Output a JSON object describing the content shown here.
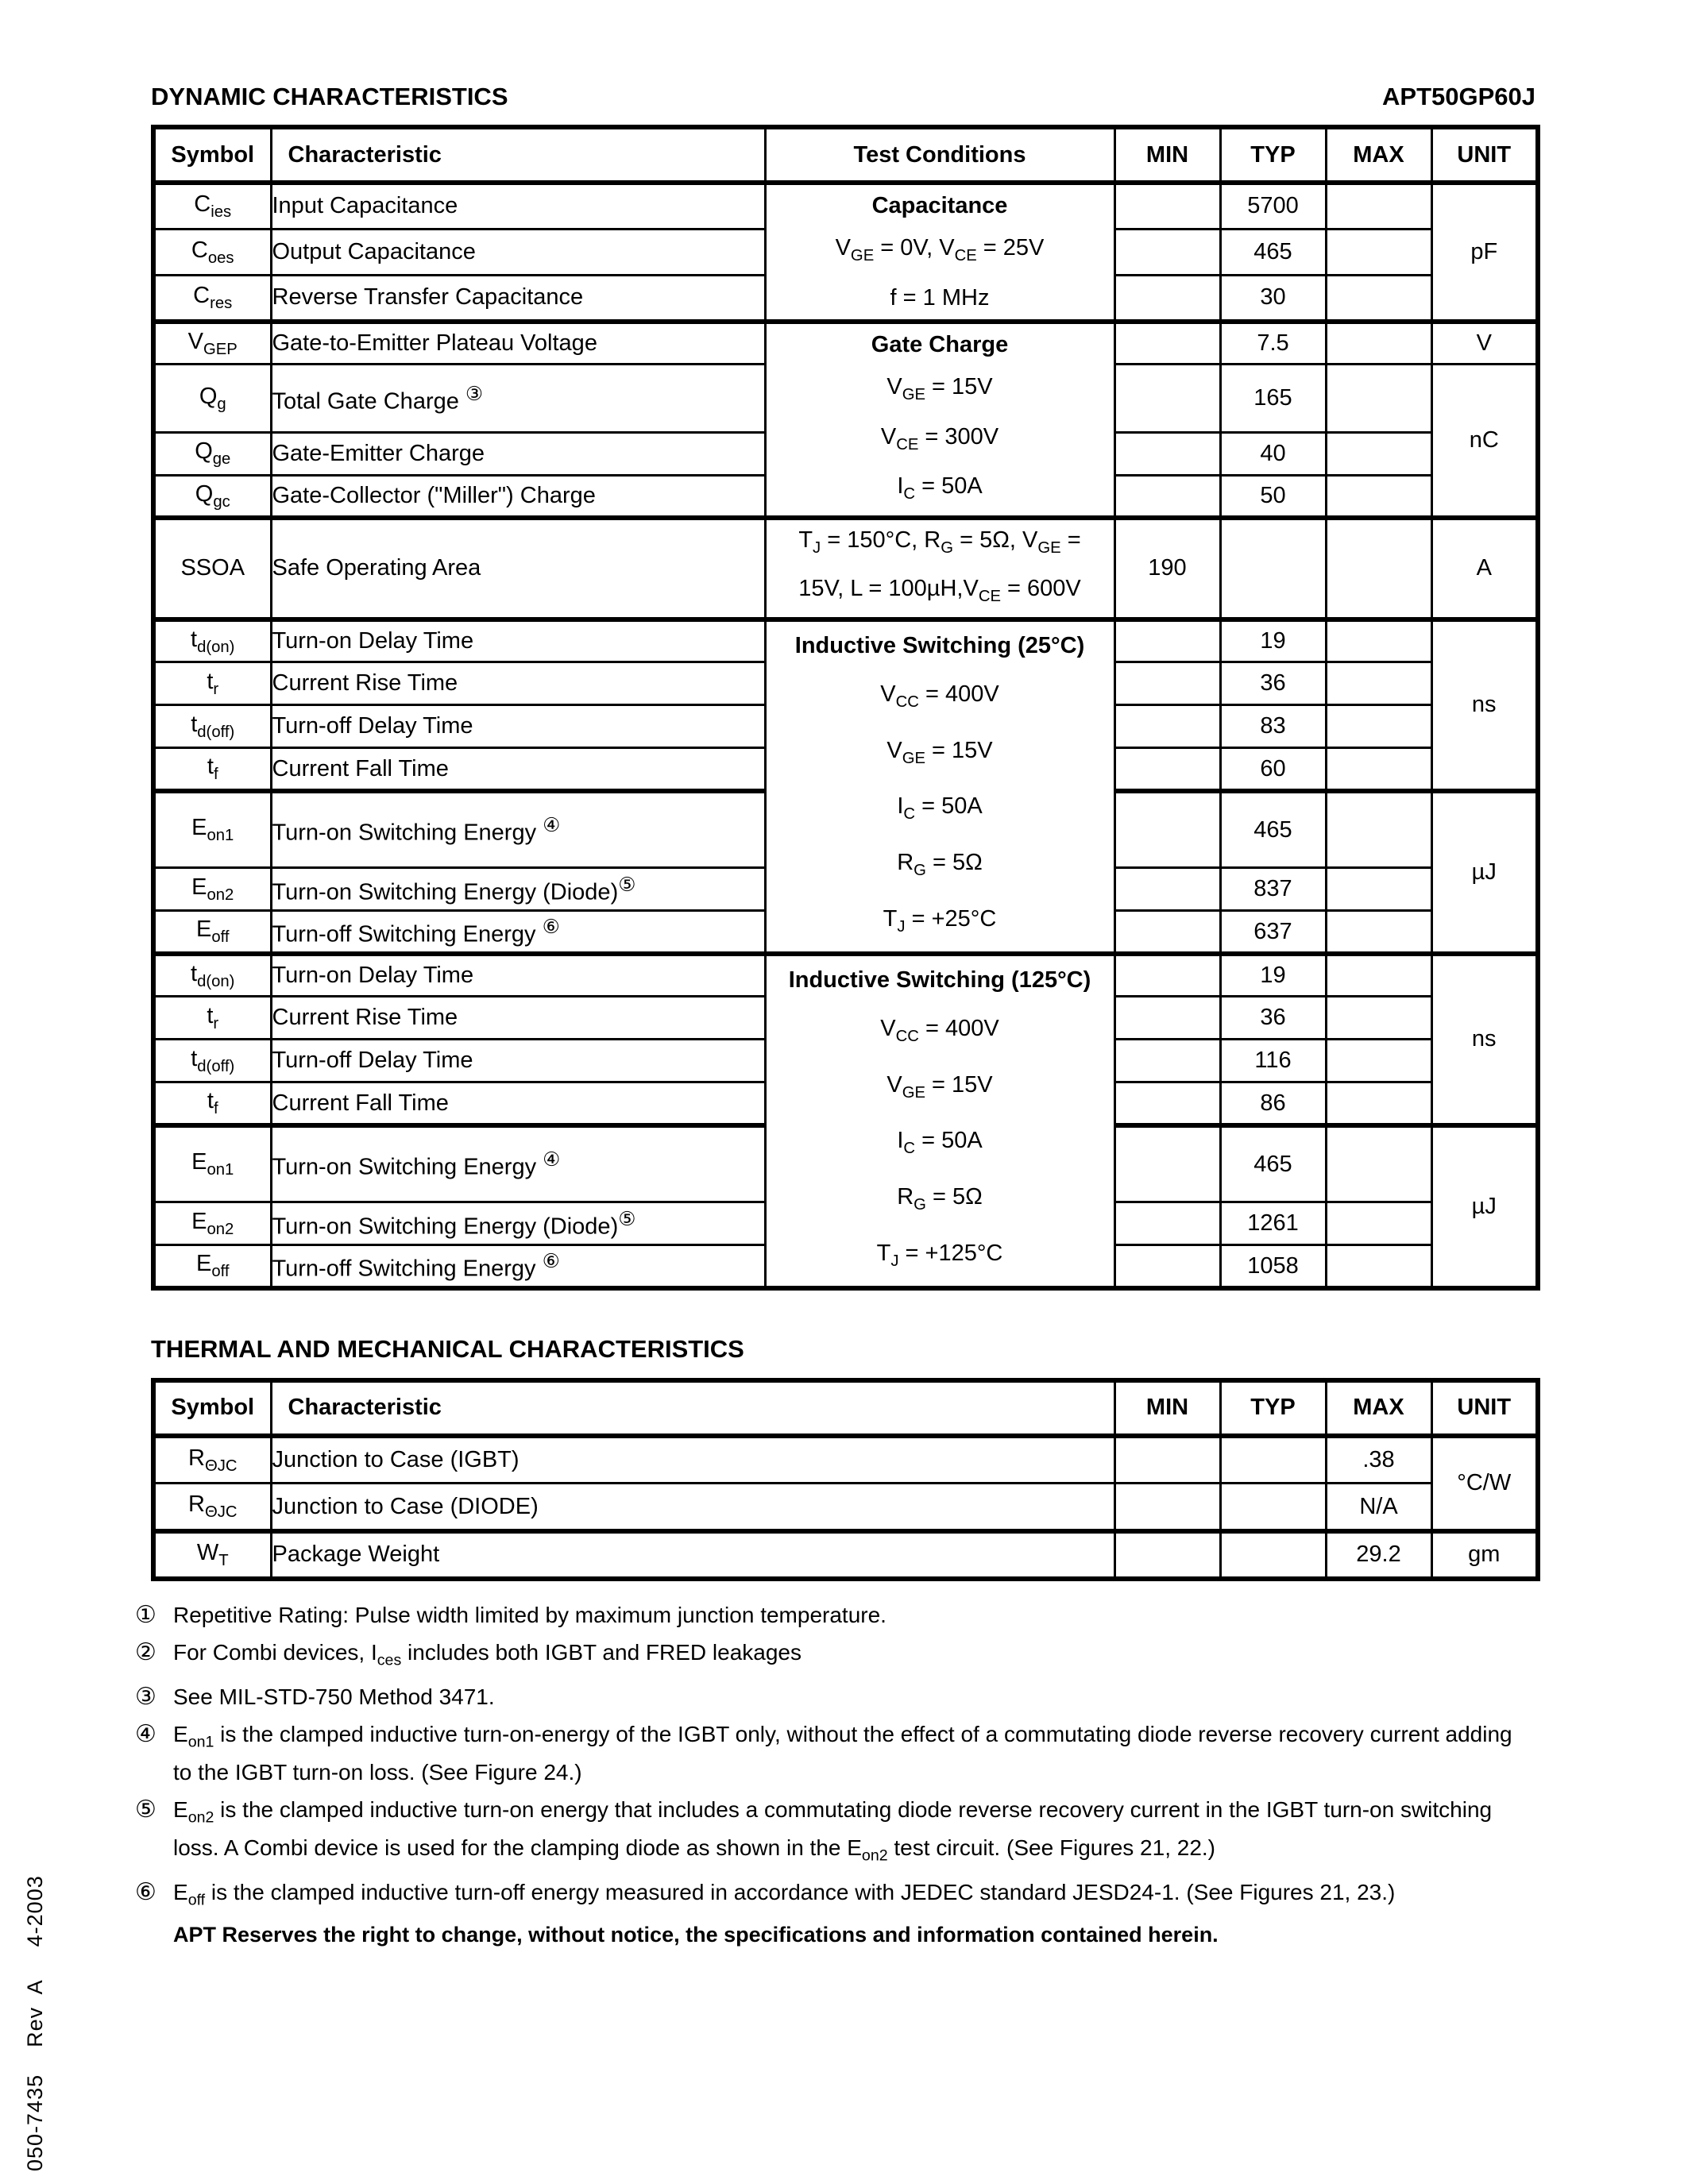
{
  "header": {
    "title": "DYNAMIC CHARACTERISTICS",
    "part_number": "APT50GP60J"
  },
  "dyn": {
    "headers": {
      "symbol": "Symbol",
      "characteristic": "Characteristic",
      "conditions": "Test Conditions",
      "min": "MIN",
      "typ": "TYP",
      "max": "MAX",
      "unit": "UNIT"
    },
    "cap": {
      "cond": [
        "Capacitance",
        "V~GE~ = 0V,  V~CE~ = 25V",
        "f = 1 MHz"
      ],
      "unit": "pF",
      "rows": [
        {
          "sym": "C~ies~",
          "name": "Input Capacitance",
          "typ": "5700"
        },
        {
          "sym": "C~oes~",
          "name": "Output Capacitance",
          "typ": "465"
        },
        {
          "sym": "C~res~",
          "name": "Reverse Transfer Capacitance",
          "typ": "30"
        }
      ]
    },
    "gate": {
      "cond": [
        "Gate Charge",
        "V~GE~ = 15V",
        "V~CE~ = 300V",
        "I~C~ = 50A"
      ],
      "unit_v": "V",
      "unit_nc": "nC",
      "rows": [
        {
          "sym": "V~GEP~",
          "name": "Gate-to-Emitter Plateau Voltage",
          "typ": "7.5"
        },
        {
          "sym": "Q~g~",
          "name": "Total Gate Charge ^③^",
          "typ": "165"
        },
        {
          "sym": "Q~ge~",
          "name": "Gate-Emitter Charge",
          "typ": "40"
        },
        {
          "sym": "Q~gc~",
          "name": "Gate-Collector (\"Miller\") Charge",
          "typ": "50"
        }
      ]
    },
    "ssoa": {
      "sym": "SSOA",
      "name": "Safe Operating Area",
      "cond": [
        "T~J~ = 150°C, R~G~ = 5Ω, V~GE~ =",
        "15V,  L = 100µH,V~CE~ = 600V"
      ],
      "min": "190",
      "unit": "A"
    },
    "sw25": {
      "cond": [
        "Inductive Switching (25°C)",
        "V~CC~ = 400V",
        "V~GE~ = 15V",
        "I~C~ = 50A",
        "R~G~ = 5Ω",
        "T~J~ = +25°C"
      ],
      "unit_ns": "ns",
      "unit_uj": "µJ",
      "rows": [
        {
          "sym": "t~d(on)~",
          "name": "Turn-on Delay Time",
          "typ": "19"
        },
        {
          "sym": "t~r~",
          "name": "Current Rise Time",
          "typ": "36"
        },
        {
          "sym": "t~d(off)~",
          "name": "Turn-off Delay Time",
          "typ": "83"
        },
        {
          "sym": "t~f~",
          "name": "Current Fall Time",
          "typ": "60"
        },
        {
          "sym": "E~on1~",
          "name": "Turn-on Switching Energy ^④^",
          "typ": "465"
        },
        {
          "sym": "E~on2~",
          "name": "Turn-on Switching Energy (Diode)^⑤^",
          "typ": "837"
        },
        {
          "sym": "E~off~",
          "name": "Turn-off Switching Energy ^⑥^",
          "typ": "637"
        }
      ]
    },
    "sw125": {
      "cond": [
        "Inductive Switching (125°C)",
        "V~CC~ = 400V",
        "V~GE~ = 15V",
        "I~C~ = 50A",
        "R~G~ = 5Ω",
        "T~J~ = +125°C"
      ],
      "unit_ns": "ns",
      "unit_uj": "µJ",
      "rows": [
        {
          "sym": "t~d(on)~",
          "name": "Turn-on Delay Time",
          "typ": "19"
        },
        {
          "sym": "t~r~",
          "name": "Current Rise Time",
          "typ": "36"
        },
        {
          "sym": "t~d(off)~",
          "name": "Turn-off Delay Time",
          "typ": "116"
        },
        {
          "sym": "t~f~",
          "name": "Current Fall Time",
          "typ": "86"
        },
        {
          "sym": "E~on1~",
          "name": "Turn-on Switching Energy ^④^",
          "typ": "465"
        },
        {
          "sym": "E~on2~",
          "name": "Turn-on Switching Energy (Diode)^⑤^",
          "typ": "1261"
        },
        {
          "sym": "E~off~",
          "name": "Turn-off Switching Energy ^⑥^",
          "typ": "1058"
        }
      ]
    }
  },
  "thermal": {
    "title": "THERMAL AND MECHANICAL CHARACTERISTICS",
    "headers": {
      "symbol": "Symbol",
      "characteristic": "Characteristic",
      "min": "MIN",
      "typ": "TYP",
      "max": "MAX",
      "unit": "UNIT"
    },
    "unit_cw": "°C/W",
    "rows": [
      {
        "sym": "R~ΘJC~",
        "name": "Junction to Case (IGBT)",
        "max": ".38"
      },
      {
        "sym": "R~ΘJC~",
        "name": "Junction to Case (DIODE)",
        "max": "N/A"
      },
      {
        "sym": "W~T~",
        "name": "Package Weight",
        "max": "29.2",
        "unit": "gm"
      }
    ]
  },
  "footnotes": [
    {
      "mark": "①",
      "text": "Repetitive Rating: Pulse width limited by maximum junction temperature."
    },
    {
      "mark": "②",
      "text": "For Combi devices, I~ces~ includes both IGBT and FRED leakages"
    },
    {
      "mark": "③",
      "text": "See MIL-STD-750 Method 3471."
    },
    {
      "mark": "④",
      "text": "E~on1~ is the clamped inductive turn-on-energy of the IGBT only, without the effect of a commutating diode reverse recovery current adding to the IGBT turn-on loss. (See Figure 24.)"
    },
    {
      "mark": "⑤",
      "text": "E~on2~ is the clamped inductive turn-on energy that includes a commutating diode reverse recovery current in the IGBT turn-on switching loss.  A Combi device is used for the clamping diode as shown in the E~on2~ test circuit.  (See Figures 21, 22.)"
    },
    {
      "mark": "⑥",
      "text": "E~off~ is the clamped inductive turn-off energy measured in accordance with JEDEC standard JESD24-1.  (See Figures 21, 23.)"
    }
  ],
  "disclaimer": "APT Reserves the right to change, without notice, the specifications and information contained herein.",
  "sidebar_text": "050-7435    Rev  A     4-2003"
}
